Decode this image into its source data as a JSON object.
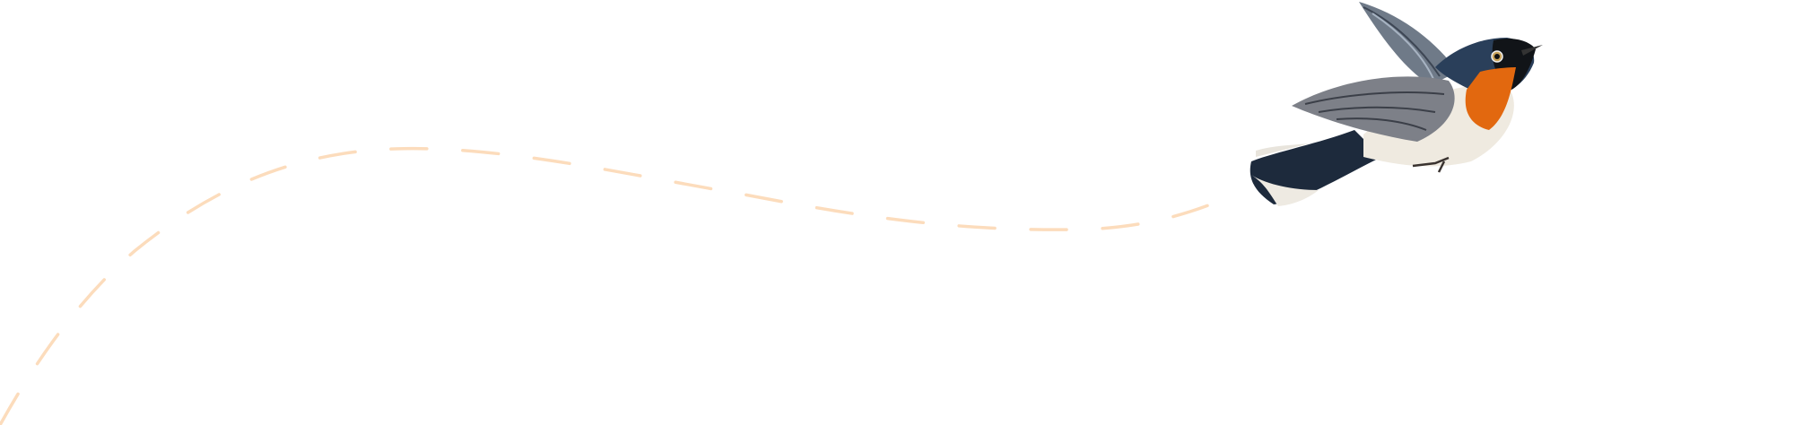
{
  "colors": {
    "background": "#ffffff",
    "flight_path": "#fcdcbc",
    "bird_back": "#2a3f5a",
    "bird_throat": "#e2680f",
    "bird_belly": "#efeae0",
    "bird_wing": "#7d8088",
    "bird_head": "#111418"
  },
  "illustration": {
    "subject": "bird-icon",
    "path_style": "dashed"
  }
}
